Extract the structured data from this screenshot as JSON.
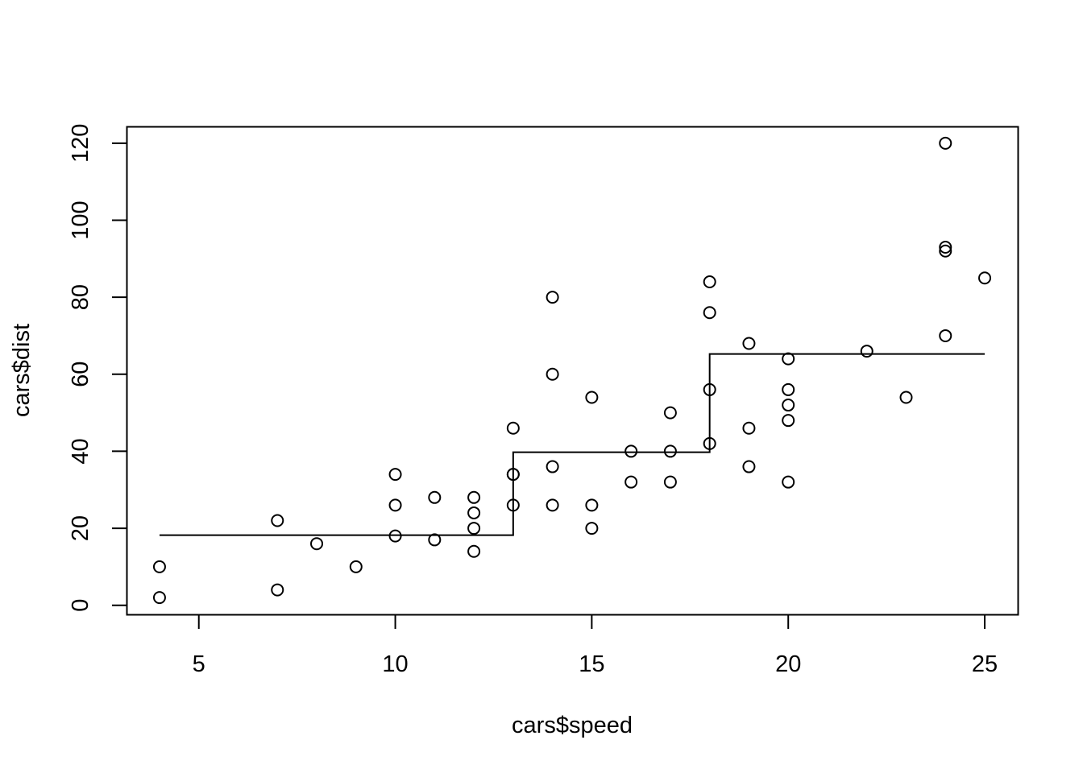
{
  "chart_data": {
    "type": "scatter",
    "title": "",
    "xlabel": "cars$speed",
    "ylabel": "cars$dist",
    "xlim": [
      3.16,
      25.84
    ],
    "ylim": [
      -2.36,
      124.36
    ],
    "x_ticks": [
      5,
      10,
      15,
      20,
      25
    ],
    "y_ticks": [
      0,
      20,
      40,
      60,
      80,
      100,
      120
    ],
    "x_tick_labels": [
      "5",
      "10",
      "15",
      "20",
      "25"
    ],
    "y_tick_labels": [
      "0",
      "20",
      "40",
      "60",
      "80",
      "100",
      "120"
    ],
    "grid": false,
    "legend": "none",
    "series": [
      {
        "type": "scatter",
        "marker": "open-circle",
        "color": "#000000",
        "points": [
          [
            4,
            2
          ],
          [
            4,
            10
          ],
          [
            7,
            4
          ],
          [
            7,
            22
          ],
          [
            8,
            16
          ],
          [
            9,
            10
          ],
          [
            10,
            18
          ],
          [
            10,
            26
          ],
          [
            10,
            34
          ],
          [
            11,
            17
          ],
          [
            11,
            28
          ],
          [
            12,
            14
          ],
          [
            12,
            20
          ],
          [
            12,
            24
          ],
          [
            12,
            28
          ],
          [
            13,
            26
          ],
          [
            13,
            34
          ],
          [
            13,
            34
          ],
          [
            13,
            46
          ],
          [
            14,
            26
          ],
          [
            14,
            36
          ],
          [
            14,
            60
          ],
          [
            14,
            80
          ],
          [
            15,
            20
          ],
          [
            15,
            26
          ],
          [
            15,
            54
          ],
          [
            16,
            32
          ],
          [
            16,
            40
          ],
          [
            17,
            32
          ],
          [
            17,
            40
          ],
          [
            17,
            50
          ],
          [
            18,
            42
          ],
          [
            18,
            56
          ],
          [
            18,
            76
          ],
          [
            18,
            84
          ],
          [
            19,
            36
          ],
          [
            19,
            46
          ],
          [
            19,
            68
          ],
          [
            20,
            32
          ],
          [
            20,
            48
          ],
          [
            20,
            52
          ],
          [
            20,
            56
          ],
          [
            20,
            64
          ],
          [
            22,
            66
          ],
          [
            23,
            54
          ],
          [
            24,
            70
          ],
          [
            24,
            92
          ],
          [
            24,
            93
          ],
          [
            24,
            120
          ],
          [
            25,
            85
          ]
        ]
      },
      {
        "type": "step",
        "color": "#000000",
        "points": [
          [
            4,
            18.2
          ],
          [
            13,
            18.2
          ],
          [
            13,
            39.75
          ],
          [
            18,
            39.75
          ],
          [
            18,
            65.27
          ],
          [
            25,
            65.27
          ]
        ]
      }
    ]
  }
}
